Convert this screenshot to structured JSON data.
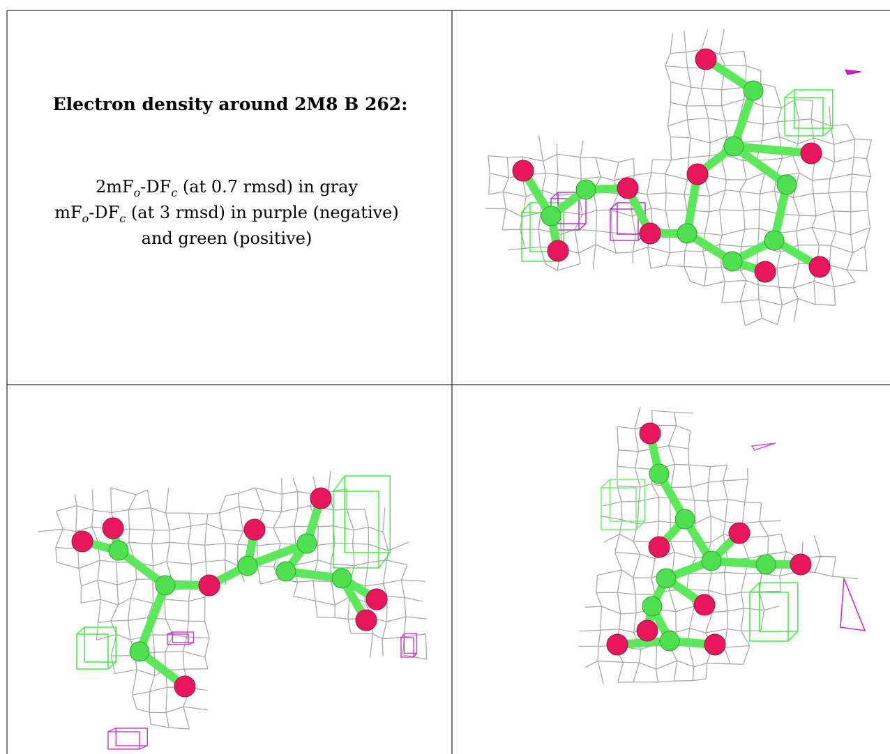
{
  "cell": {
    "title": "Electron density around 2M8 B 262:",
    "lines": [
      [
        {
          "text": "2mF"
        },
        {
          "sub": "o"
        },
        {
          "text": "-DF"
        },
        {
          "sub": "c"
        },
        {
          "text": " (at 0.7 rmsd) in gray"
        }
      ],
      [
        {
          "text": "mF"
        },
        {
          "sub": "o"
        },
        {
          "text": "-DF"
        },
        {
          "sub": "c"
        },
        {
          "text": " (at 3 rmsd) in purple (negative)"
        }
      ],
      [
        {
          "text": "and green (positive)"
        }
      ]
    ]
  }
}
